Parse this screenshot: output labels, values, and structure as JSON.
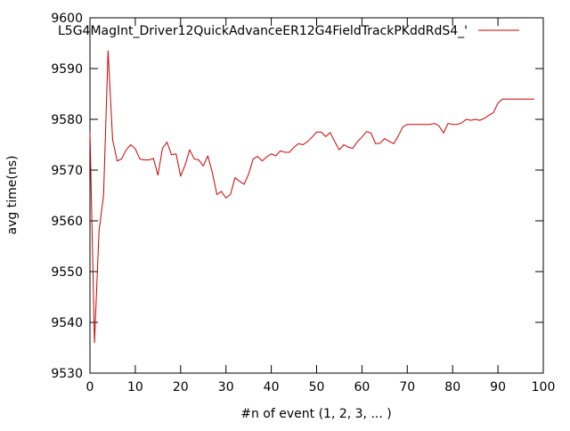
{
  "chart_data": {
    "type": "line",
    "xlabel": "#n of event (1, 2, 3, ... )",
    "ylabel": "avg time(ns)",
    "xlim": [
      0,
      100
    ],
    "ylim": [
      9530,
      9600
    ],
    "xticks": [
      0,
      10,
      20,
      30,
      40,
      50,
      60,
      70,
      80,
      90,
      100
    ],
    "yticks": [
      9530,
      9540,
      9550,
      9560,
      9570,
      9580,
      9590,
      9600
    ],
    "grid": false,
    "legend_position": "top-right",
    "series": [
      {
        "name": "L5G4MagInt_Driver12QuickAdvanceER12G4FieldTrackPKddRdS4_'",
        "color": "#cc0000",
        "x": [
          0,
          1,
          2,
          3,
          4,
          5,
          6,
          7,
          8,
          9,
          10,
          11,
          12,
          13,
          14,
          15,
          16,
          17,
          18,
          19,
          20,
          21,
          22,
          23,
          24,
          25,
          26,
          27,
          28,
          29,
          30,
          31,
          32,
          33,
          34,
          35,
          36,
          37,
          38,
          39,
          40,
          41,
          42,
          43,
          44,
          45,
          46,
          47,
          48,
          49,
          50,
          51,
          52,
          53,
          54,
          55,
          56,
          57,
          58,
          59,
          60,
          61,
          62,
          63,
          64,
          65,
          66,
          67,
          68,
          69,
          70,
          71,
          72,
          73,
          74,
          75,
          76,
          77,
          78,
          79,
          80,
          81,
          82,
          83,
          84,
          85,
          86,
          87,
          88,
          89,
          90,
          91,
          92,
          93,
          94,
          95,
          96,
          97,
          98
        ],
        "y": [
          9577.5,
          9536,
          9558,
          9565,
          9593.5,
          9576,
          9571.8,
          9572.2,
          9574,
          9575,
          9574.2,
          9572.2,
          9572,
          9572,
          9572.3,
          9569,
          9574.3,
          9575.5,
          9573,
          9573.2,
          9568.8,
          9571,
          9574,
          9572.2,
          9572,
          9570.8,
          9572.8,
          9569.5,
          9565.2,
          9565.8,
          9564.5,
          9565.2,
          9568.5,
          9567.8,
          9567.2,
          9569.2,
          9572.2,
          9572.7,
          9571.8,
          9572.6,
          9573.2,
          9572.8,
          9573.8,
          9573.5,
          9573.5,
          9574.5,
          9575.2,
          9575,
          9575.6,
          9576.5,
          9577.5,
          9577.5,
          9576.6,
          9577.4,
          9575.6,
          9574,
          9575,
          9574.5,
          9574.3,
          9575.6,
          9576.5,
          9577.6,
          9577.3,
          9575.2,
          9575.3,
          9576.2,
          9575.7,
          9575.2,
          9576.7,
          9578.5,
          9579,
          9579,
          9579,
          9579,
          9579,
          9579,
          9579.2,
          9578.7,
          9577.3,
          9579.2,
          9579,
          9579,
          9579.3,
          9580,
          9579.8,
          9580,
          9579.8,
          9580.2,
          9580.8,
          9581.3,
          9583.2,
          9584,
          9584,
          9584,
          9584,
          9584,
          9584,
          9584,
          9584
        ]
      }
    ]
  }
}
